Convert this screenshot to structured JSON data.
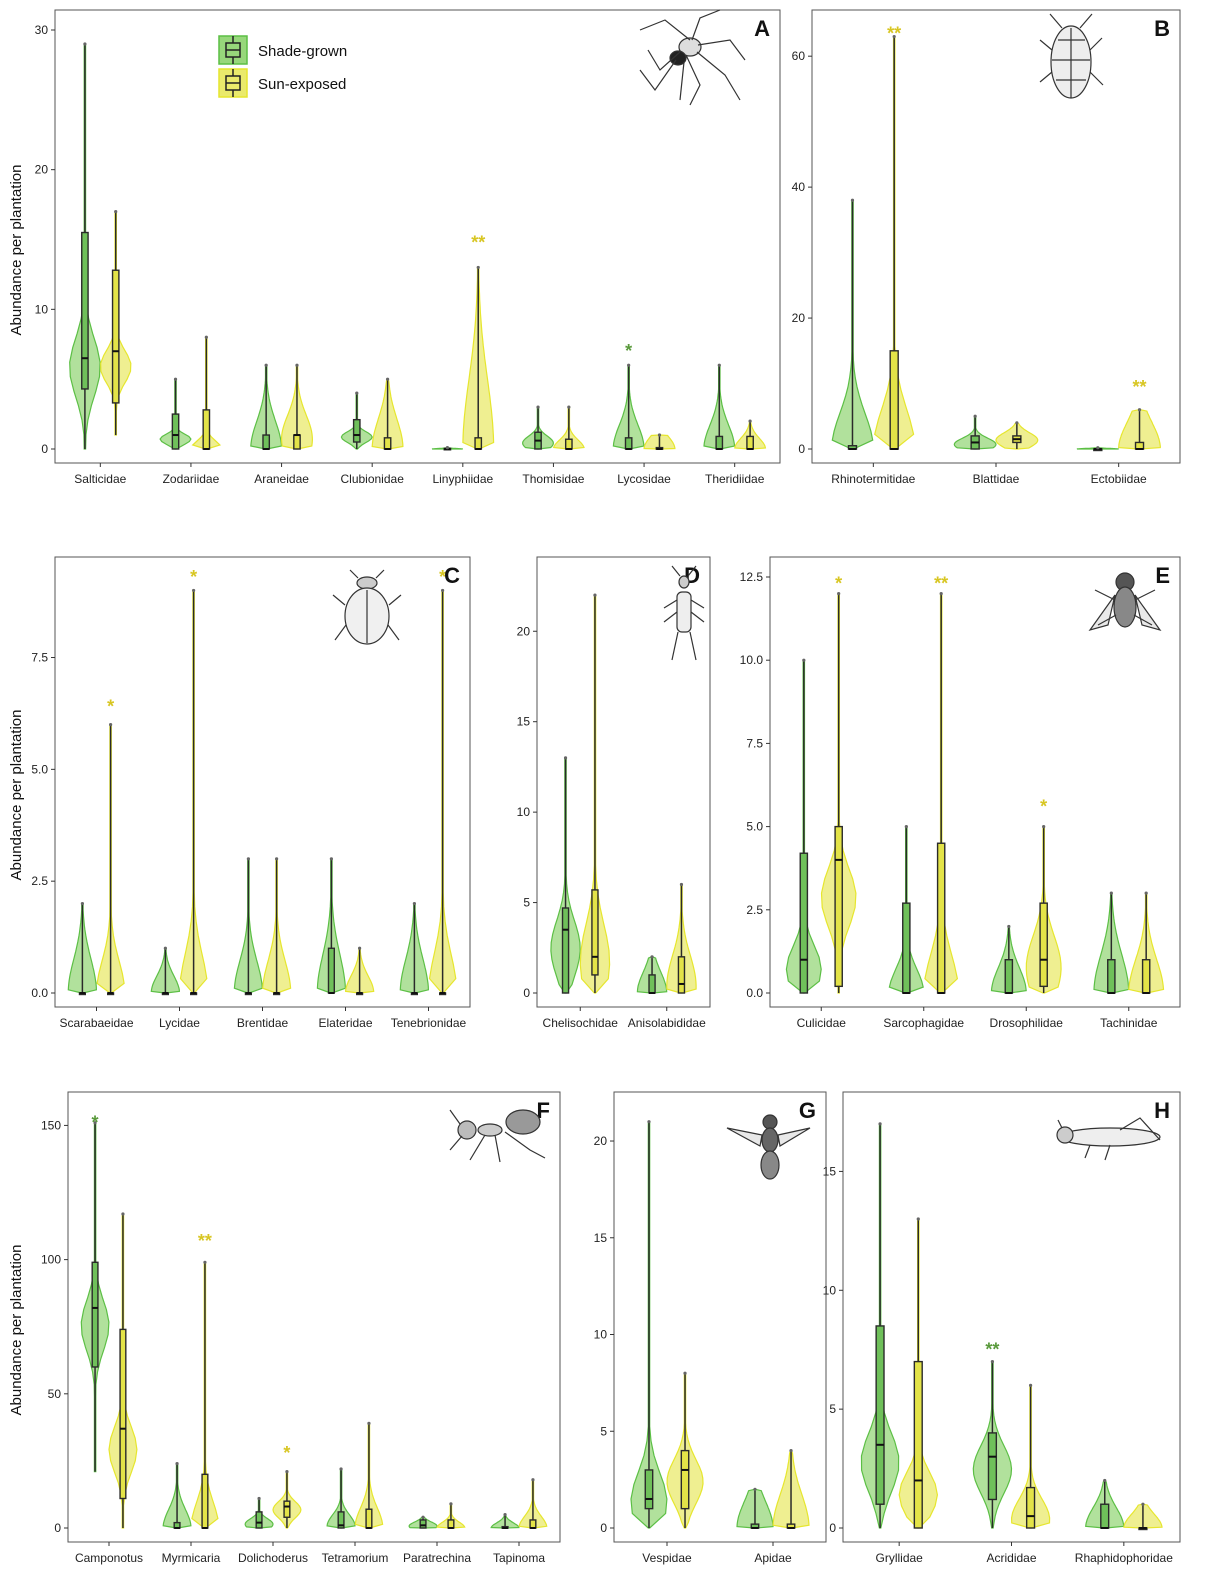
{
  "colors": {
    "shade_fill": "#97d77b",
    "shade_line": "#5cbf45",
    "shade_box": "#6fc05a",
    "sun_fill": "#eaea6c",
    "sun_line": "#e6e62e",
    "sun_box": "#e3e348",
    "shade_sig": "#5a9a3c",
    "sun_sig": "#d8c623"
  },
  "legend": {
    "shade": "Shade-grown",
    "sun": "Sun-exposed"
  },
  "y_label": "Abundance per plantation",
  "chart_data": [
    {
      "panel": "A",
      "type": "violin+box",
      "ylim": [
        0,
        30
      ],
      "yticks": [
        {
          "v": 0,
          "t": "0"
        },
        {
          "v": 10,
          "t": "10"
        },
        {
          "v": 20,
          "t": "20"
        },
        {
          "v": 30,
          "t": "30"
        }
      ],
      "categories": [
        "Salticidae",
        "Zodariidae",
        "Araneidae",
        "Clubionidae",
        "Linyphiidae",
        "Thomisidae",
        "Lycosidae",
        "Theridiidae"
      ],
      "series": [
        {
          "name": "Shade-grown",
          "data": [
            {
              "min": 0,
              "q1": 4.3,
              "med": 6.5,
              "q3": 15.5,
              "max": 29,
              "w": 0.15
            },
            {
              "min": 0,
              "q1": 0,
              "med": 1,
              "q3": 2.5,
              "max": 5,
              "w": 0.15
            },
            {
              "min": 0,
              "q1": 0,
              "med": 0,
              "q3": 1,
              "max": 6,
              "w": 0.7
            },
            {
              "min": 0,
              "q1": 0.5,
              "med": 1,
              "q3": 2.1,
              "max": 4,
              "w": 0.2
            },
            {
              "min": 0,
              "q1": 0,
              "med": 0,
              "q3": 0.05,
              "max": 0.1,
              "w": 0.8
            },
            {
              "min": 0,
              "q1": 0,
              "med": 0.6,
              "q3": 1.2,
              "max": 3,
              "w": 0.35
            },
            {
              "min": 0,
              "q1": 0,
              "med": 0,
              "q3": 0.8,
              "max": 6,
              "w": 0.6
            },
            {
              "min": 0,
              "q1": 0,
              "med": 0,
              "q3": 0.9,
              "max": 6,
              "w": 0.6
            }
          ]
        },
        {
          "name": "Sun-exposed",
          "data": [
            {
              "min": 1,
              "q1": 3.3,
              "med": 7,
              "q3": 12.8,
              "max": 17,
              "w": 0.15
            },
            {
              "min": 0,
              "q1": 0,
              "med": 0,
              "q3": 2.8,
              "max": 8,
              "w": 0.15
            },
            {
              "min": 0,
              "q1": 0,
              "med": 1,
              "q3": 1,
              "max": 6,
              "w": 0.6
            },
            {
              "min": 0,
              "q1": 0,
              "med": 0,
              "q3": 0.8,
              "max": 5,
              "w": 0.9
            },
            {
              "min": 0,
              "q1": 0,
              "med": 0,
              "q3": 0.8,
              "max": 13,
              "w": 0.8
            },
            {
              "min": 0,
              "q1": 0,
              "med": 0,
              "q3": 0.7,
              "max": 3,
              "w": 0.45
            },
            {
              "min": 0,
              "q1": 0,
              "med": 0,
              "q3": 0.1,
              "max": 1,
              "w": 1.8
            },
            {
              "min": 0,
              "q1": 0,
              "med": 0,
              "q3": 0.9,
              "max": 2,
              "w": 0.8
            }
          ]
        }
      ],
      "significance": [
        {
          "cat": "Linyphiidae",
          "text": "**",
          "series": "Sun-exposed",
          "y": 14.8
        },
        {
          "cat": "Lycosidae",
          "text": "*",
          "series": "Shade-grown",
          "y": 7
        }
      ]
    },
    {
      "panel": "B",
      "type": "violin+box",
      "ylim": [
        0,
        64
      ],
      "yticks": [
        {
          "v": 0,
          "t": "0"
        },
        {
          "v": 20,
          "t": "20"
        },
        {
          "v": 40,
          "t": "40"
        },
        {
          "v": 60,
          "t": "60"
        }
      ],
      "categories": [
        "Rhinotermitidae",
        "Blattidae",
        "Ectobiidae"
      ],
      "series": [
        {
          "name": "Shade-grown",
          "data": [
            {
              "min": 0,
              "q1": 0,
              "med": 0,
              "q3": 0.5,
              "max": 38,
              "w": 0.3
            },
            {
              "min": 0,
              "q1": 0,
              "med": 1,
              "q3": 2,
              "max": 5,
              "w": 0.4
            },
            {
              "min": 0,
              "q1": 0,
              "med": 0,
              "q3": 0,
              "max": 0.2,
              "w": 0.9
            }
          ]
        },
        {
          "name": "Sun-exposed",
          "data": [
            {
              "min": 0,
              "q1": 0,
              "med": 0,
              "q3": 15,
              "max": 63,
              "w": 0.2
            },
            {
              "min": 0,
              "q1": 1,
              "med": 1.5,
              "q3": 2,
              "max": 4,
              "w": 0.6
            },
            {
              "min": 0,
              "q1": 0,
              "med": 0,
              "q3": 1,
              "max": 6,
              "w": 1.4
            }
          ]
        }
      ],
      "significance": [
        {
          "cat": "Rhinotermitidae",
          "text": "**",
          "series": "Sun-exposed",
          "y": 63.5
        },
        {
          "cat": "Ectobiidae",
          "text": "**",
          "series": "Sun-exposed",
          "y": 9.5
        }
      ]
    },
    {
      "panel": "C",
      "type": "violin+box",
      "ylim": [
        0,
        9.3
      ],
      "yticks": [
        {
          "v": 0,
          "t": "0.0"
        },
        {
          "v": 2.5,
          "t": "2.5"
        },
        {
          "v": 5,
          "t": "5.0"
        },
        {
          "v": 7.5,
          "t": "7.5"
        }
      ],
      "categories": [
        "Scarabaeidae",
        "Lycidae",
        "Brentidae",
        "Elateridae",
        "Tenebrionidae"
      ],
      "series": [
        {
          "name": "Shade-grown",
          "data": [
            {
              "min": 0,
              "q1": 0,
              "med": 0,
              "q3": 0,
              "max": 2,
              "w": 0.8
            },
            {
              "min": 0,
              "q1": 0,
              "med": 0,
              "q3": 0,
              "max": 1,
              "w": 0.8
            },
            {
              "min": 0,
              "q1": 0,
              "med": 0,
              "q3": 0,
              "max": 3,
              "w": 0.5
            },
            {
              "min": 0,
              "q1": 0,
              "med": 0,
              "q3": 1,
              "max": 3,
              "w": 0.6
            },
            {
              "min": 0,
              "q1": 0,
              "med": 0,
              "q3": 0,
              "max": 2,
              "w": 0.8
            }
          ]
        },
        {
          "name": "Sun-exposed",
          "data": [
            {
              "min": 0,
              "q1": 0,
              "med": 0,
              "q3": 0,
              "max": 6,
              "w": 0.25
            },
            {
              "min": 0,
              "q1": 0,
              "med": 0,
              "q3": 0,
              "max": 9,
              "w": 0.2
            },
            {
              "min": 0,
              "q1": 0,
              "med": 0,
              "q3": 0,
              "max": 3,
              "w": 0.5
            },
            {
              "min": 0,
              "q1": 0,
              "med": 0,
              "q3": 0,
              "max": 1,
              "w": 0.8
            },
            {
              "min": 0,
              "q1": 0,
              "med": 0,
              "q3": 0,
              "max": 9,
              "w": 0.2
            }
          ]
        }
      ],
      "significance": [
        {
          "cat": "Scarabaeidae",
          "text": "*",
          "series": "Sun-exposed",
          "y": 6.4
        },
        {
          "cat": "Lycidae",
          "text": "*",
          "series": "Sun-exposed",
          "y": 9.3
        },
        {
          "cat": "Tenebrionidae",
          "text": "*",
          "series": "Sun-exposed",
          "y": 9.3
        }
      ]
    },
    {
      "panel": "D",
      "type": "violin+box",
      "ylim": [
        0,
        23
      ],
      "yticks": [
        {
          "v": 0,
          "t": "0"
        },
        {
          "v": 5,
          "t": "5"
        },
        {
          "v": 10,
          "t": "10"
        },
        {
          "v": 15,
          "t": "15"
        },
        {
          "v": 20,
          "t": "20"
        }
      ],
      "categories": [
        "Chelisochidae",
        "Anisolabididae"
      ],
      "series": [
        {
          "name": "Shade-grown",
          "data": [
            {
              "min": 0,
              "q1": 0,
              "med": 3.5,
              "q3": 4.7,
              "max": 13,
              "w": 0.25
            },
            {
              "min": 0,
              "q1": 0,
              "med": 0,
              "q3": 1,
              "max": 2,
              "w": 1.2
            }
          ]
        },
        {
          "name": "Sun-exposed",
          "data": [
            {
              "min": 0,
              "q1": 1,
              "med": 2,
              "q3": 5.7,
              "max": 22,
              "w": 0.2
            },
            {
              "min": 0,
              "q1": 0,
              "med": 0.5,
              "q3": 2,
              "max": 6,
              "w": 0.6
            }
          ]
        }
      ],
      "significance": []
    },
    {
      "panel": "E",
      "type": "violin+box",
      "ylim": [
        0,
        12.5
      ],
      "yticks": [
        {
          "v": 0,
          "t": "0.0"
        },
        {
          "v": 2.5,
          "t": "2.5"
        },
        {
          "v": 5,
          "t": "5.0"
        },
        {
          "v": 7.5,
          "t": "7.5"
        },
        {
          "v": 10,
          "t": "10.0"
        },
        {
          "v": 12.5,
          "t": "12.5"
        }
      ],
      "categories": [
        "Culicidae",
        "Sarcophagidae",
        "Drosophilidae",
        "Tachinidae"
      ],
      "series": [
        {
          "name": "Shade-grown",
          "data": [
            {
              "min": 0,
              "q1": 0,
              "med": 1,
              "q3": 4.2,
              "max": 10,
              "w": 0.15
            },
            {
              "min": 0,
              "q1": 0,
              "med": 0,
              "q3": 2.7,
              "max": 5,
              "w": 0.3
            },
            {
              "min": 0,
              "q1": 0,
              "med": 0,
              "q3": 1,
              "max": 2,
              "w": 0.8
            },
            {
              "min": 0,
              "q1": 0,
              "med": 0,
              "q3": 1,
              "max": 3,
              "w": 0.8
            }
          ]
        },
        {
          "name": "Sun-exposed",
          "data": [
            {
              "min": 0,
              "q1": 0.2,
              "med": 4,
              "q3": 5,
              "max": 12,
              "w": 0.15
            },
            {
              "min": 0,
              "q1": 0,
              "med": 0,
              "q3": 4.5,
              "max": 12,
              "w": 0.2
            },
            {
              "min": 0,
              "q1": 0.2,
              "med": 1,
              "q3": 2.7,
              "max": 5,
              "w": 0.4
            },
            {
              "min": 0,
              "q1": 0,
              "med": 0,
              "q3": 1,
              "max": 3,
              "w": 0.7
            }
          ]
        }
      ],
      "significance": [
        {
          "cat": "Culicidae",
          "text": "*",
          "series": "Sun-exposed",
          "y": 12.3
        },
        {
          "cat": "Sarcophagidae",
          "text": "**",
          "series": "Sun-exposed",
          "y": 12.3
        },
        {
          "cat": "Drosophilidae",
          "text": "*",
          "series": "Sun-exposed",
          "y": 5.6
        }
      ]
    },
    {
      "panel": "F",
      "type": "violin+box",
      "ylim": [
        0,
        155
      ],
      "yticks": [
        {
          "v": 0,
          "t": "0"
        },
        {
          "v": 50,
          "t": "50"
        },
        {
          "v": 100,
          "t": "100"
        },
        {
          "v": 150,
          "t": "150"
        }
      ],
      "categories": [
        "Camponotus",
        "Myrmicaria",
        "Dolichoderus",
        "Tetramorium",
        "Paratrechina",
        "Tapinoma"
      ],
      "series": [
        {
          "name": "Shade-grown",
          "data": [
            {
              "min": 21,
              "q1": 60,
              "med": 82,
              "q3": 99,
              "max": 151,
              "w": 0.15
            },
            {
              "min": 0,
              "q1": 0,
              "med": 0,
              "q3": 2,
              "max": 24,
              "w": 0.6
            },
            {
              "min": 0,
              "q1": 0,
              "med": 2,
              "q3": 6,
              "max": 11,
              "w": 0.4
            },
            {
              "min": 0,
              "q1": 0,
              "med": 1,
              "q3": 6,
              "max": 22,
              "w": 0.4
            },
            {
              "min": 0,
              "q1": 0,
              "med": 1,
              "q3": 3,
              "max": 4,
              "w": 0.8
            },
            {
              "min": 0,
              "q1": 0,
              "med": 0,
              "q3": 0.5,
              "max": 5,
              "w": 0.8
            }
          ]
        },
        {
          "name": "Sun-exposed",
          "data": [
            {
              "min": 0,
              "q1": 11,
              "med": 37,
              "q3": 74,
              "max": 117,
              "w": 0.15
            },
            {
              "min": 0,
              "q1": 0,
              "med": 0,
              "q3": 20,
              "max": 99,
              "w": 0.2
            },
            {
              "min": 0,
              "q1": 4,
              "med": 8,
              "q3": 10,
              "max": 21,
              "w": 0.3
            },
            {
              "min": 0,
              "q1": 0,
              "med": 0,
              "q3": 7,
              "max": 39,
              "w": 0.4
            },
            {
              "min": 0,
              "q1": 0,
              "med": 0,
              "q3": 3,
              "max": 9,
              "w": 0.5
            },
            {
              "min": 0,
              "q1": 0,
              "med": 0,
              "q3": 3,
              "max": 18,
              "w": 0.5
            }
          ]
        }
      ],
      "significance": [
        {
          "cat": "Camponotus",
          "text": "*",
          "series": "Shade-grown",
          "y": 151
        },
        {
          "cat": "Myrmicaria",
          "text": "**",
          "series": "Sun-exposed",
          "y": 107
        },
        {
          "cat": "Dolichoderus",
          "text": "*",
          "series": "Sun-exposed",
          "y": 28
        }
      ]
    },
    {
      "panel": "G",
      "type": "violin+box",
      "ylim": [
        0,
        21.5
      ],
      "yticks": [
        {
          "v": 0,
          "t": "0"
        },
        {
          "v": 5,
          "t": "5"
        },
        {
          "v": 10,
          "t": "10"
        },
        {
          "v": 15,
          "t": "15"
        },
        {
          "v": 20,
          "t": "20"
        }
      ],
      "categories": [
        "Vespidae",
        "Apidae"
      ],
      "series": [
        {
          "name": "Shade-grown",
          "data": [
            {
              "min": 0,
              "q1": 1,
              "med": 1.5,
              "q3": 3,
              "max": 21,
              "w": 0.15
            },
            {
              "min": 0,
              "q1": 0,
              "med": 0,
              "q3": 0.2,
              "max": 2,
              "w": 1.4
            }
          ]
        },
        {
          "name": "Sun-exposed",
          "data": [
            {
              "min": 0,
              "q1": 1,
              "med": 3,
              "q3": 4,
              "max": 8,
              "w": 0.3
            },
            {
              "min": 0,
              "q1": 0,
              "med": 0,
              "q3": 0.2,
              "max": 4,
              "w": 0.9
            }
          ]
        }
      ],
      "significance": []
    },
    {
      "panel": "H",
      "type": "violin+box",
      "ylim": [
        0,
        17.5
      ],
      "yticks": [
        {
          "v": 0,
          "t": "0"
        },
        {
          "v": 5,
          "t": "5"
        },
        {
          "v": 10,
          "t": "10"
        },
        {
          "v": 15,
          "t": "15"
        }
      ],
      "categories": [
        "Gryllidae",
        "Acrididae",
        "Rhaphidophoridae"
      ],
      "series": [
        {
          "name": "Shade-grown",
          "data": [
            {
              "min": 0,
              "q1": 1,
              "med": 3.5,
              "q3": 8.5,
              "max": 17,
              "w": 0.15
            },
            {
              "min": 0,
              "q1": 1.2,
              "med": 3,
              "q3": 4,
              "max": 7,
              "w": 0.3
            },
            {
              "min": 0,
              "q1": 0,
              "med": 0,
              "q3": 1,
              "max": 2,
              "w": 0.9
            }
          ]
        },
        {
          "name": "Sun-exposed",
          "data": [
            {
              "min": 0,
              "q1": 0,
              "med": 2,
              "q3": 7,
              "max": 13,
              "w": 0.15
            },
            {
              "min": 0,
              "q1": 0,
              "med": 0.5,
              "q3": 1.7,
              "max": 6,
              "w": 0.3
            },
            {
              "min": 0,
              "q1": 0,
              "med": 0,
              "q3": 0,
              "max": 1,
              "w": 1.2
            }
          ]
        }
      ],
      "significance": [
        {
          "cat": "Acrididae",
          "text": "**",
          "series": "Shade-grown",
          "y": 7.5
        }
      ]
    }
  ]
}
